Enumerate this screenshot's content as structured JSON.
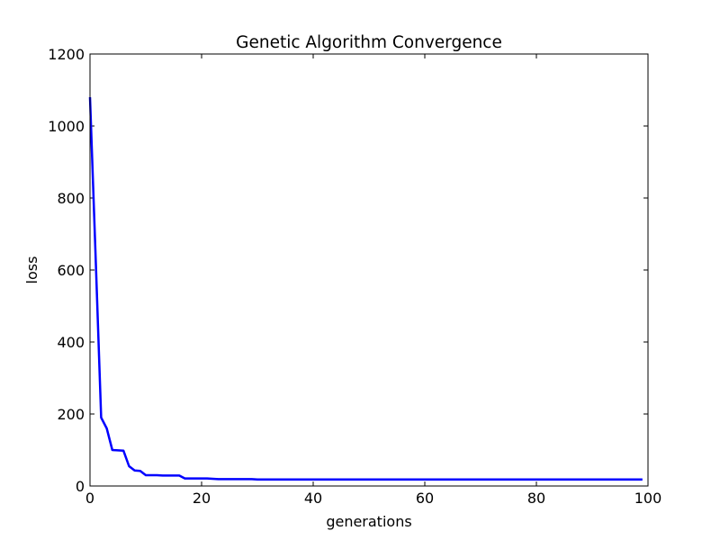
{
  "chart_data": {
    "type": "line",
    "title": "Genetic Algorithm Convergence",
    "xlabel": "generations",
    "ylabel": "loss",
    "xlim": [
      0,
      100
    ],
    "ylim": [
      0,
      1200
    ],
    "x_ticks": [
      0,
      20,
      40,
      60,
      80,
      100
    ],
    "y_ticks": [
      0,
      200,
      400,
      600,
      800,
      1000,
      1200
    ],
    "x_tick_labels": [
      "0",
      "20",
      "40",
      "60",
      "80",
      "100"
    ],
    "y_tick_labels": [
      "0",
      "200",
      "400",
      "600",
      "800",
      "1000",
      "1200"
    ],
    "grid": false,
    "series": [
      {
        "color": "#0000ff",
        "x": [
          0,
          1,
          2,
          3,
          4,
          5,
          6,
          7,
          8,
          9,
          10,
          11,
          12,
          13,
          14,
          15,
          16,
          17,
          18,
          19,
          20,
          21,
          22,
          23,
          24,
          25,
          26,
          27,
          28,
          29,
          30,
          31,
          32,
          33,
          34,
          35,
          36,
          37,
          38,
          39,
          40,
          41,
          42,
          43,
          44,
          45,
          46,
          47,
          48,
          49,
          50,
          51,
          52,
          53,
          54,
          55,
          56,
          57,
          58,
          59,
          60,
          61,
          62,
          63,
          64,
          65,
          66,
          67,
          68,
          69,
          70,
          71,
          72,
          73,
          74,
          75,
          76,
          77,
          78,
          79,
          80,
          81,
          82,
          83,
          84,
          85,
          86,
          87,
          88,
          89,
          90,
          91,
          92,
          93,
          94,
          95,
          96,
          97,
          98,
          99
        ],
        "y": [
          1080,
          640,
          190,
          160,
          100,
          99,
          98,
          55,
          43,
          42,
          30,
          30,
          30,
          29,
          29,
          29,
          29,
          21,
          21,
          21,
          21,
          21,
          20,
          19,
          19,
          19,
          19,
          19,
          19,
          19,
          18,
          18,
          18,
          18,
          18,
          18,
          18,
          18,
          18,
          18,
          18,
          18,
          18,
          18,
          18,
          18,
          18,
          18,
          18,
          18,
          18,
          18,
          18,
          18,
          18,
          18,
          18,
          18,
          18,
          18,
          18,
          18,
          18,
          18,
          18,
          18,
          18,
          18,
          18,
          18,
          18,
          18,
          18,
          18,
          18,
          18,
          18,
          18,
          18,
          18,
          18,
          18,
          18,
          18,
          18,
          18,
          18,
          18,
          18,
          18,
          18,
          18,
          18,
          18,
          18,
          18,
          18,
          18,
          18,
          18
        ]
      }
    ]
  }
}
